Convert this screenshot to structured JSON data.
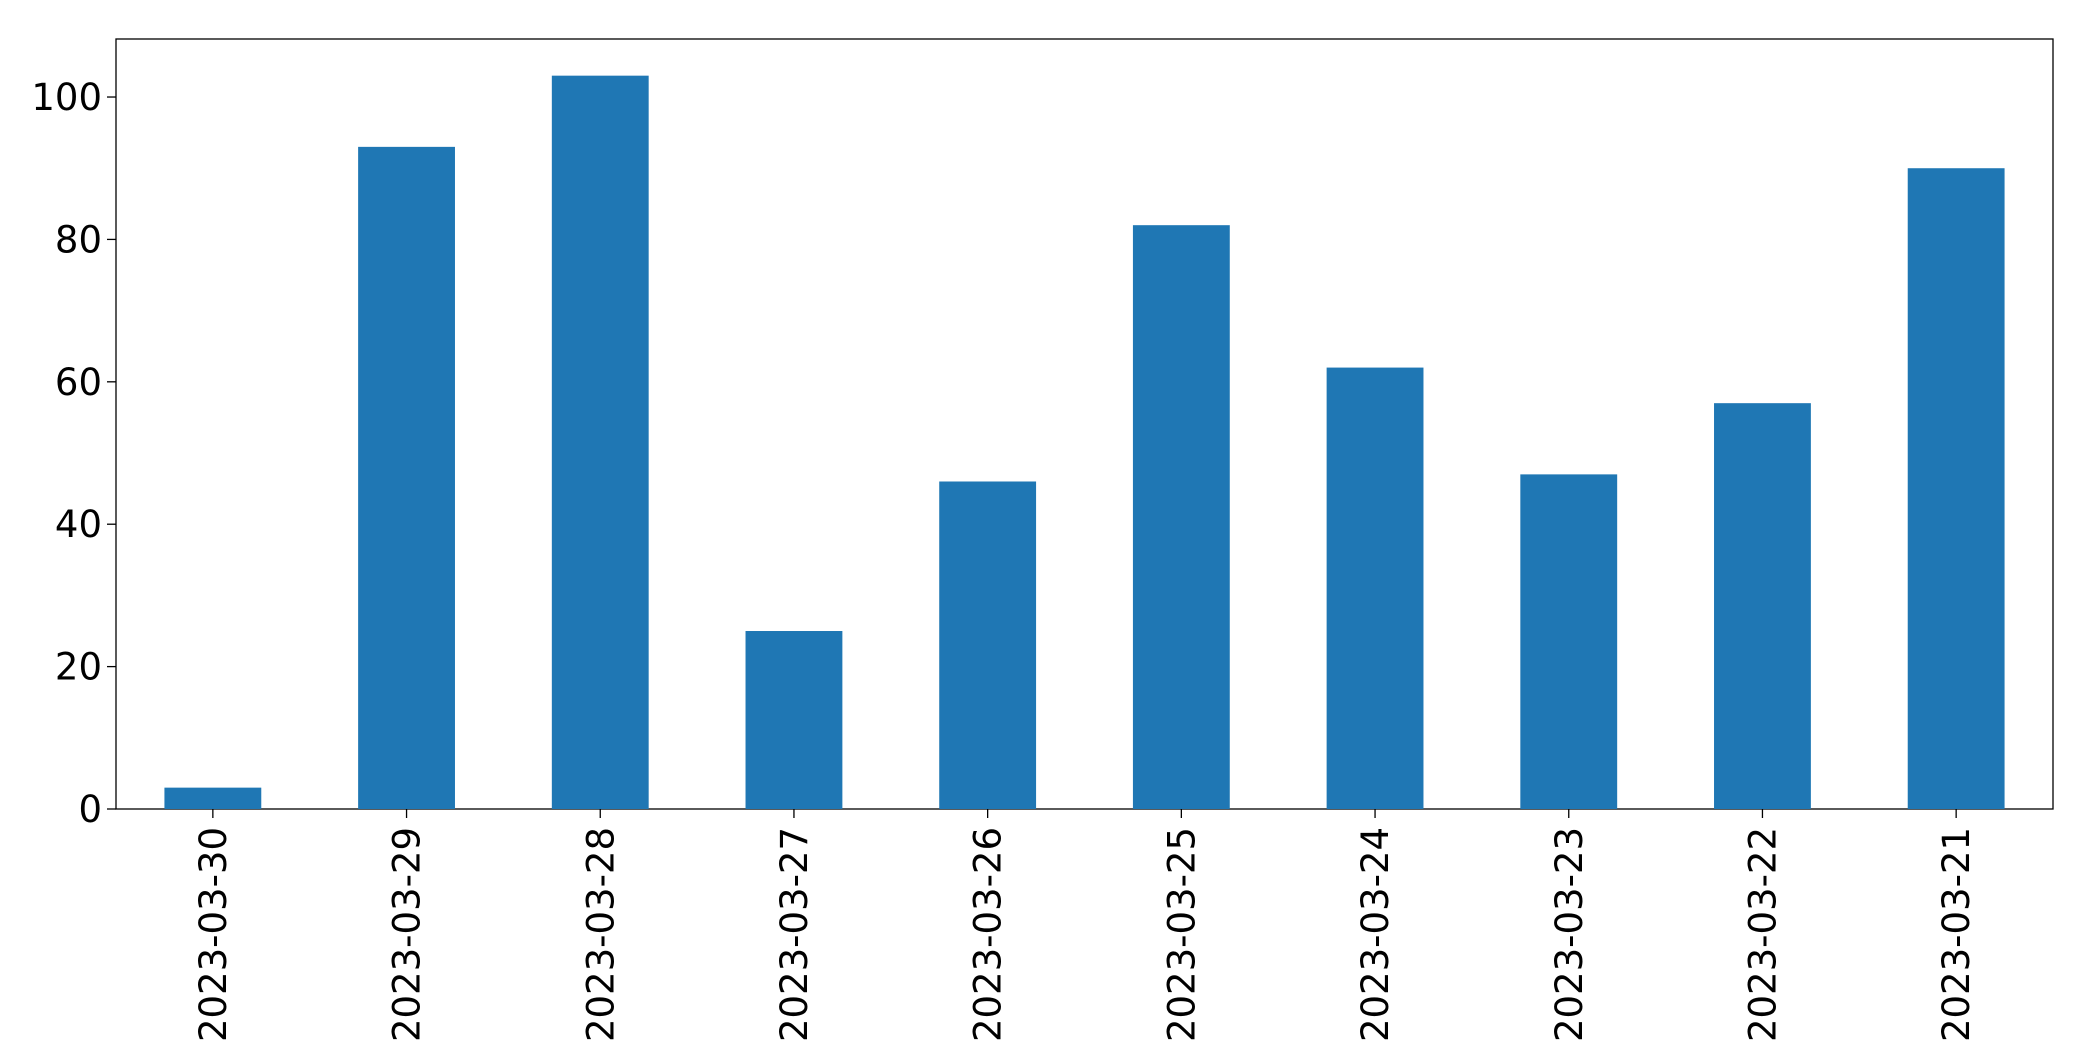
{
  "chart_data": {
    "type": "bar",
    "categories": [
      "2023-03-30",
      "2023-03-29",
      "2023-03-28",
      "2023-03-27",
      "2023-03-26",
      "2023-03-25",
      "2023-03-24",
      "2023-03-23",
      "2023-03-22",
      "2023-03-21"
    ],
    "values": [
      3,
      93,
      103,
      25,
      46,
      82,
      62,
      47,
      57,
      90
    ],
    "color": "#1f77b4",
    "ylim": [
      0,
      108.15
    ],
    "yticks": [
      0,
      20,
      40,
      60,
      80,
      100
    ],
    "grid": false
  }
}
